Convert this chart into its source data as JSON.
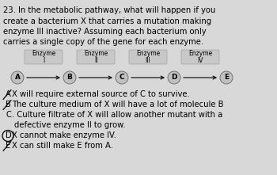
{
  "question_text_lines": [
    "23. In the metabolic pathway, what will happen if you",
    "create a bacterium X that carries a mutation making",
    "enzyme III inactive? Assuming each bacterium only",
    "carries a single copy of the gene for each enzyme."
  ],
  "enzyme_labels": [
    "Enzyme\nI",
    "Enzyme\nII",
    "Enzyme\nIII",
    "Enzyme\nIV"
  ],
  "molecule_labels": [
    "A",
    "B",
    "C",
    "D",
    "E"
  ],
  "enzyme_box_color": "#c8c8c8",
  "enzyme_box_edgecolor": "#999999",
  "background_color": "#d8d8d8",
  "answers": [
    {
      "label": "A",
      "text": "X will require external source of C to survive.",
      "strikethrough": true,
      "circled": false
    },
    {
      "label": "B",
      "text": "The culture medium of X will have a lot of molecule B",
      "strikethrough": true,
      "circled": false
    },
    {
      "label": "C",
      "text": ". Culture filtrate of X will allow another mutant with a",
      "strikethrough": false,
      "circled": false
    },
    {
      "label": "",
      "text": "defective enzyme II to grow.",
      "strikethrough": false,
      "circled": false
    },
    {
      "label": "D",
      "text": "X cannot make enzyme IV.",
      "strikethrough": false,
      "circled": true
    },
    {
      "label": "E",
      "text": "X can still make E from A.",
      "strikethrough": true,
      "circled": false
    }
  ],
  "font_size_q": 7.2,
  "font_size_ans": 7.2,
  "font_size_enz": 5.5,
  "font_size_mol": 6.5
}
